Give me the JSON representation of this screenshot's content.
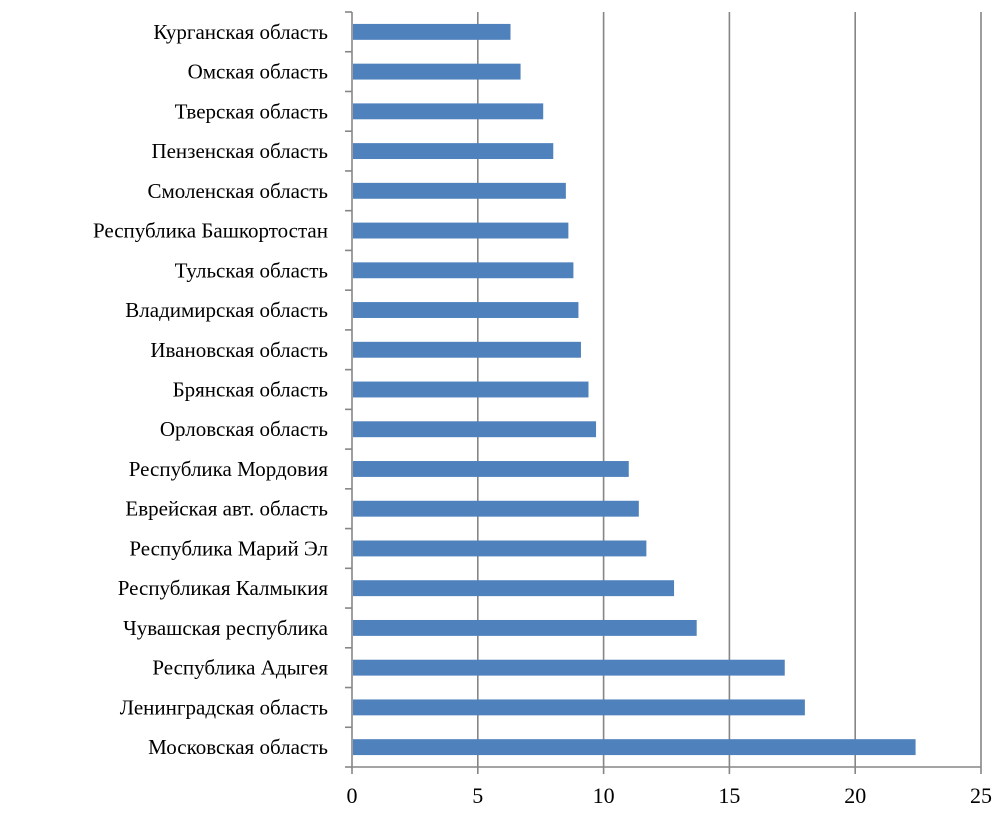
{
  "chart_data": {
    "type": "bar",
    "orientation": "horizontal",
    "categories": [
      "Курганская область",
      "Омская область",
      "Тверская область",
      "Пензенская область",
      "Смоленская область",
      "Республика Башкортостан",
      "Тульская область",
      "Владимирская область",
      "Ивановская область",
      "Брянская область",
      "Орловская область",
      "Республика Мордовия",
      "Еврейская авт. область",
      "Республика Марий Эл",
      "Республикая Калмыкия",
      "Чувашская республика",
      "Республика Адыгея",
      "Ленинградская область",
      "Московская область"
    ],
    "values": [
      6.3,
      6.7,
      7.6,
      8.0,
      8.5,
      8.6,
      8.8,
      9.0,
      9.1,
      9.4,
      9.7,
      11.0,
      11.4,
      11.7,
      12.8,
      13.7,
      17.2,
      18.0,
      22.4
    ],
    "xlim": [
      0,
      25
    ],
    "xticks": [
      "0",
      "5",
      "10",
      "15",
      "20",
      "25"
    ],
    "xtick_values": [
      0,
      5,
      10,
      15,
      20,
      25
    ],
    "grid": "vertical",
    "legend": "none",
    "bar_color": "#4f81bd",
    "grid_color": "#868686",
    "axis_color": "#868686"
  }
}
